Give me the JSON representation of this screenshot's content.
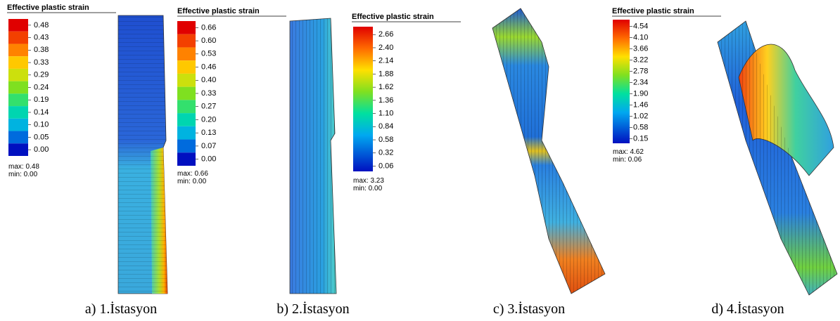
{
  "panels": [
    {
      "legend": {
        "title": "Effective plastic strain",
        "labels": [
          "0.48",
          "0.43",
          "0.38",
          "0.33",
          "0.29",
          "0.24",
          "0.19",
          "0.14",
          "0.10",
          "0.05",
          "0.00"
        ],
        "max": "max: 0.48",
        "min": "min:  0.00"
      },
      "caption": "a) 1.İstasyon"
    },
    {
      "legend": {
        "title": "Effective plastic strain",
        "labels": [
          "0.66",
          "0.60",
          "0.53",
          "0.46",
          "0.40",
          "0.33",
          "0.27",
          "0.20",
          "0.13",
          "0.07",
          "0.00"
        ],
        "max": "max: 0.66",
        "min": "min:  0.00"
      },
      "caption": "b) 2.İstasyon"
    },
    {
      "legend": {
        "title": "Effective plastic strain",
        "labels": [
          "2.66",
          "2.40",
          "2.14",
          "1.88",
          "1.62",
          "1.36",
          "1.10",
          "0.84",
          "0.58",
          "0.32",
          "0.06"
        ],
        "max": "max: 3.23",
        "min": "min:  0.00"
      },
      "caption": "c) 3.İstasyon"
    },
    {
      "legend": {
        "title": "Effective plastic strain",
        "labels": [
          "4.54",
          "4.10",
          "3.66",
          "3.22",
          "2.78",
          "2.34",
          "1.90",
          "1.46",
          "1.02",
          "0.58",
          "0.15"
        ],
        "max": "max: 4.62",
        "min": "min:  0.06"
      },
      "caption": "d) 4.İstasyon"
    }
  ]
}
